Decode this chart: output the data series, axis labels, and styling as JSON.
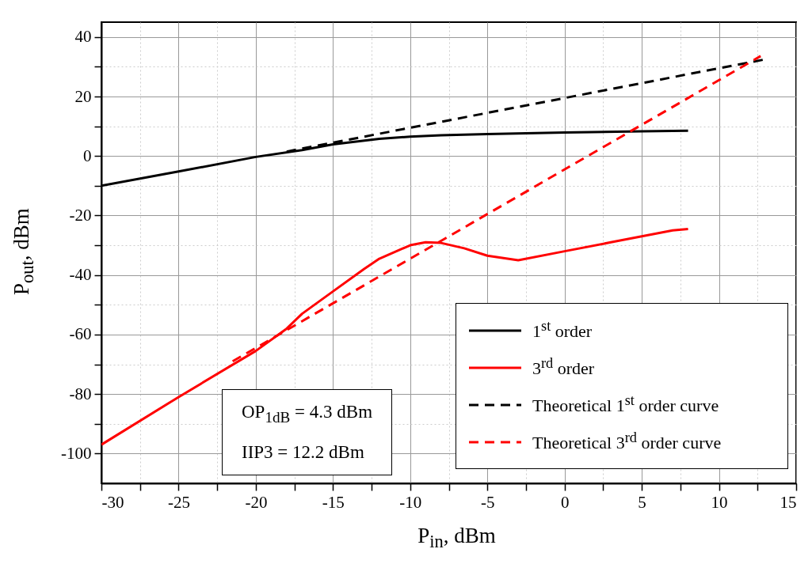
{
  "chart_data": {
    "type": "line",
    "xlabel": "P$_{in}$, dBm",
    "ylabel": "P$_{out}$, dBm",
    "xlim": [
      -30,
      15
    ],
    "ylim": [
      -110,
      45
    ],
    "xticks": [
      -30,
      {
        "value": -27.5,
        "label": null
      },
      -25,
      {
        "value": -22.5,
        "label": null
      },
      -20,
      {
        "value": -17.5,
        "label": null
      },
      -15,
      {
        "value": -12.5,
        "label": null
      },
      -10,
      {
        "value": -7.5,
        "label": null
      },
      -5,
      {
        "value": -2.5,
        "label": null
      },
      0,
      {
        "value": 2.5,
        "label": null
      },
      5,
      {
        "value": 7.5,
        "label": null
      },
      10,
      {
        "value": 12.5,
        "label": null
      },
      15
    ],
    "yticks": [
      -100,
      {
        "value": -90,
        "label": null
      },
      -80,
      {
        "value": -70,
        "label": null
      },
      -60,
      {
        "value": -50,
        "label": null
      },
      -40,
      {
        "value": -30,
        "label": null
      },
      -20,
      {
        "value": -10,
        "label": null
      },
      0,
      {
        "value": 10,
        "label": null
      },
      20,
      {
        "value": 30,
        "label": null
      },
      40
    ],
    "grid": true,
    "legend": "bottom right",
    "annotations": [
      "OP$_{1dB}$ = 4.3 dBm",
      "IIP3 = 12.2 dBm"
    ],
    "series": [
      {
        "name": "1$^{st}$ order",
        "color": "#000000",
        "line_style": "solid",
        "x": [
          -30,
          -25,
          -20,
          -17,
          -15,
          -12,
          -10,
          -8,
          -5,
          0,
          5,
          8
        ],
        "values": [
          -10,
          -5.2,
          -0.3,
          2,
          3.9,
          5.8,
          6.5,
          7,
          7.4,
          7.9,
          8.3,
          8.5
        ]
      },
      {
        "name": "3$^{rd}$ order",
        "color": "#ff0000",
        "line_style": "solid",
        "x": [
          -30,
          -25,
          -20,
          -18,
          -17,
          -15,
          -13,
          -12,
          -10,
          -9,
          -8,
          -6.5,
          -5,
          -3,
          0,
          3,
          5,
          7,
          8
        ],
        "values": [
          -97,
          -81,
          -65.5,
          -58,
          -53,
          -45.5,
          -38,
          -34.5,
          -30,
          -29,
          -29.2,
          -31,
          -33.5,
          -35,
          -32,
          -29,
          -27,
          -25,
          -24.5
        ]
      },
      {
        "name": "Theoretical 1$^{st}$ order curve",
        "color": "#000000",
        "line_style": "dashed",
        "x": [
          -18,
          13
        ],
        "values": [
          1.5,
          32.5
        ]
      },
      {
        "name": "Theoretical 3$^{rd}$ order curve",
        "color": "#ff0000",
        "line_style": "dashed",
        "x": [
          -21.5,
          12.7
        ],
        "values": [
          -69,
          33.6
        ]
      }
    ]
  }
}
